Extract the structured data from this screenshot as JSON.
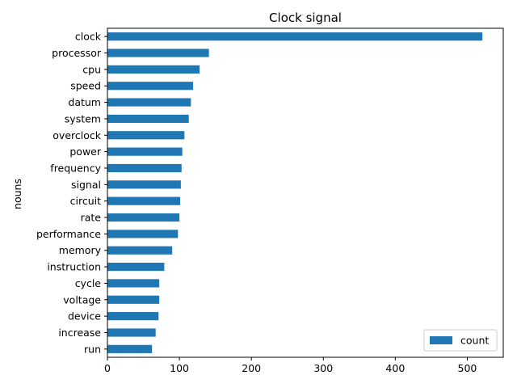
{
  "chart_data": {
    "type": "bar",
    "orientation": "horizontal",
    "title": "Clock signal",
    "xlabel": "",
    "ylabel": "nouns",
    "categories": [
      "clock",
      "processor",
      "cpu",
      "speed",
      "datum",
      "system",
      "overclock",
      "power",
      "frequency",
      "signal",
      "circuit",
      "rate",
      "performance",
      "memory",
      "instruction",
      "cycle",
      "voltage",
      "device",
      "increase",
      "run"
    ],
    "series": [
      {
        "name": "count",
        "color": "#1f77b4",
        "values": [
          521,
          141,
          128,
          119,
          116,
          113,
          107,
          104,
          103,
          102,
          101,
          100,
          98,
          90,
          79,
          72,
          72,
          71,
          67,
          62
        ]
      }
    ],
    "xlim": [
      0,
      550
    ],
    "xticks": [
      0,
      100,
      200,
      300,
      400,
      500
    ],
    "legend": {
      "position": "lower-right"
    },
    "grid": false
  }
}
